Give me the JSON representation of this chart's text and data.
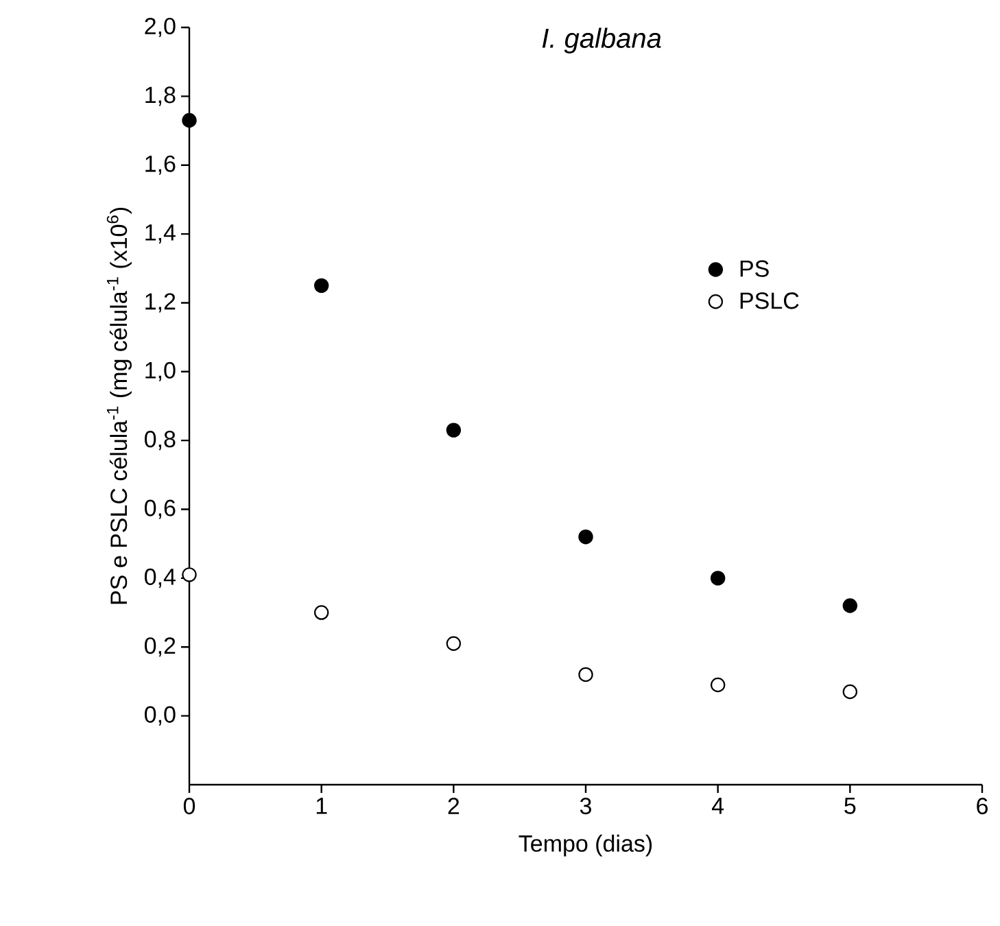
{
  "chart_data": {
    "type": "scatter",
    "title": "I. galbana",
    "xlabel": "Tempo (dias)",
    "ylabel": "PS e PSLC célula$^{-1}$ (mg célula$^{-1}$ (x10$^{6}$)",
    "x": [
      0,
      1,
      2,
      3,
      4,
      5
    ],
    "series": [
      {
        "name": "PS",
        "color": "#000000",
        "values": [
          1.73,
          1.25,
          0.83,
          0.52,
          0.4,
          0.32
        ]
      },
      {
        "name": "PSLC",
        "color": "#ffffff",
        "values": [
          0.41,
          0.3,
          0.21,
          0.12,
          0.09,
          0.07
        ]
      }
    ],
    "xlim": [
      0,
      6
    ],
    "xticks": [
      0,
      1,
      2,
      3,
      4,
      5,
      6
    ],
    "ylim": [
      -0.2,
      2.0
    ],
    "yticks": [
      {
        "value": 0.0,
        "label": "0,0"
      },
      {
        "value": 0.2,
        "label": "0,2"
      },
      {
        "value": 0.4,
        "label": "0,4"
      },
      {
        "value": 0.6,
        "label": "0,6"
      },
      {
        "value": 0.8,
        "label": "0,8"
      },
      {
        "value": 1.0,
        "label": "1,0"
      },
      {
        "value": 1.2,
        "label": "1,2"
      },
      {
        "value": 1.4,
        "label": "1,4"
      },
      {
        "value": 1.6,
        "label": "1,6"
      },
      {
        "value": 1.8,
        "label": "1,8"
      },
      {
        "value": 2.0,
        "label": "2,0"
      }
    ],
    "marker": "circle",
    "legend": "right",
    "grid": false
  }
}
